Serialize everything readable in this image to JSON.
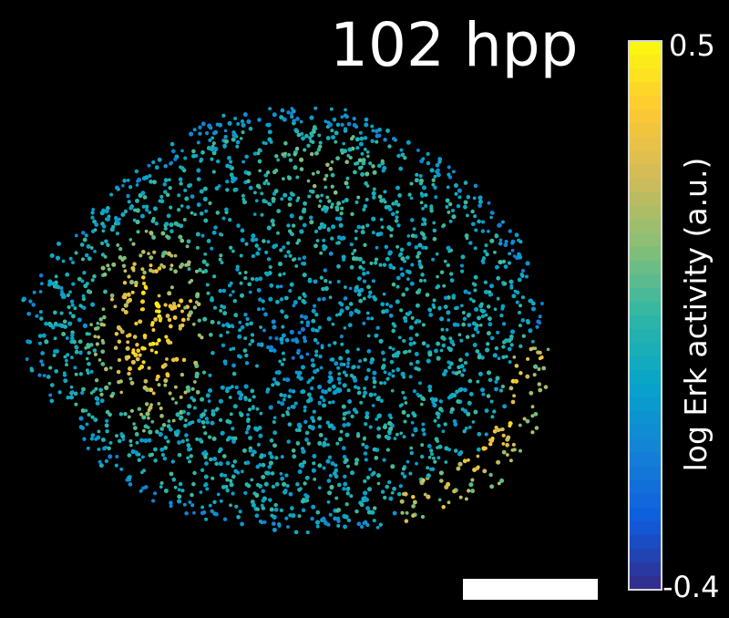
{
  "figure": {
    "time_label": "102 hpp",
    "colorbar": {
      "title": "log Erk activity (a.u.)",
      "max_label": "0.5",
      "min_label": "-0.4",
      "colormap": [
        "#352a87",
        "#0f5cdd",
        "#1481d6",
        "#06a4ca",
        "#2eb7a4",
        "#87bf77",
        "#d1bb59",
        "#fec832",
        "#f9fb0e"
      ]
    },
    "colors": {
      "background": "#000000",
      "scale_bar": "#ffffff"
    }
  }
}
